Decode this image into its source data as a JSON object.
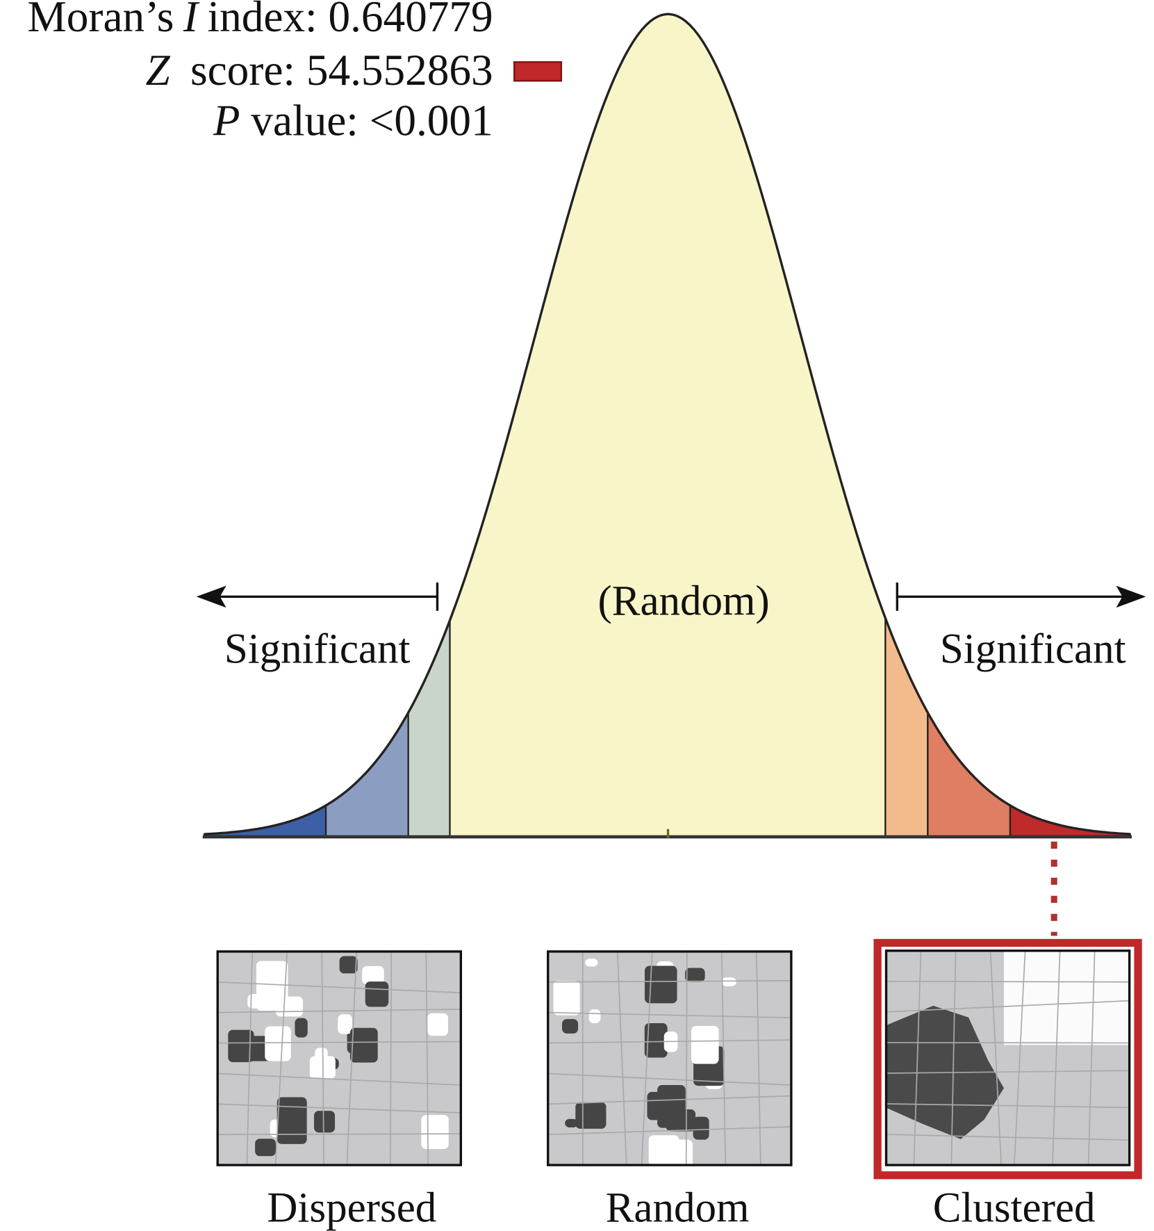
{
  "stats": [
    {
      "text_before": "Moran’s",
      "italic": "I",
      "text_after": "index: 0.640779"
    },
    {
      "italic": "Z",
      "text_after": "score: 54.552863"
    },
    {
      "italic": "P",
      "text_after": "value: <0.001"
    }
  ],
  "curve": {
    "center_label": "(Random)",
    "left_label": "Significant",
    "right_label": "Significant"
  },
  "panels": [
    "Dispersed",
    "Random",
    "Clustered"
  ]
}
